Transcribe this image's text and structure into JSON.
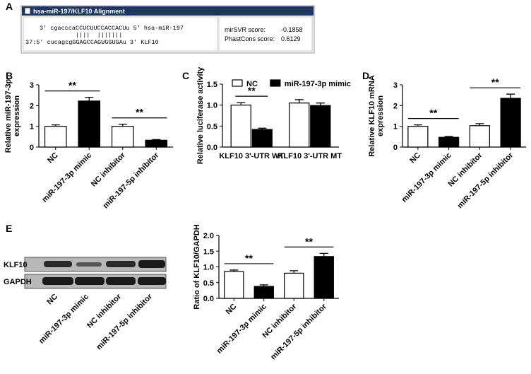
{
  "panel_labels": [
    "A",
    "B",
    "C",
    "D",
    "E"
  ],
  "alignment": {
    "title": "hsa-miR-197/KLF10 Alignment",
    "lines": [
      "3' cgacccaCCUCUUCCACCACUu 5' hsa-miR-197",
      "||||  |||||||",
      "37:5' cucagcgGGAGCCAGUGGUGAu 3' KLF10"
    ],
    "scores": [
      {
        "label": "mirSVR score:",
        "value": -0.1858
      },
      {
        "label": "PhastCons score:",
        "value": 0.6129
      }
    ]
  },
  "blot": {
    "rows": [
      "KLF10",
      "GAPDH"
    ],
    "lanes": [
      "NC",
      "miR-197-3p mimic",
      "NC inhibitor",
      "miR-197-5p inhibitor"
    ]
  },
  "chart_data": [
    {
      "type": "bar",
      "y_label": [
        "Relative miR-197-3p",
        "expression"
      ],
      "categories": [
        "NC",
        "miR-197-3p mimic",
        "NC inhibitor",
        "miR-197-5p inhibitor"
      ],
      "values": [
        1.0,
        2.22,
        1.0,
        0.33
      ],
      "errors": [
        0.07,
        0.18,
        0.1,
        0.03
      ],
      "colors": [
        "#ffffff",
        "#000000",
        "#ffffff",
        "#000000"
      ],
      "ylim": [
        0,
        3
      ],
      "yticks": [
        0,
        1,
        2,
        3
      ],
      "annotations": [
        "**",
        "**"
      ]
    },
    {
      "type": "grouped-bar",
      "y_label": [
        "Relative luciferase activity"
      ],
      "categories": [
        "KLF10 3'-UTR WT",
        "KLF10 3'-UTR MT"
      ],
      "series": [
        {
          "name": "NC",
          "color": "#ffffff",
          "values": [
            1.0,
            1.05
          ],
          "errors": [
            0.06,
            0.08
          ]
        },
        {
          "name": "miR-197-3p mimic",
          "color": "#000000",
          "values": [
            0.42,
            0.99
          ],
          "errors": [
            0.03,
            0.06
          ]
        }
      ],
      "ylim": [
        0,
        1.5
      ],
      "yticks": [
        {
          "value": 0,
          "label": "0.0"
        },
        0.5,
        {
          "value": 1,
          "label": "1.0"
        },
        1.5
      ],
      "annotations": [
        "**"
      ]
    },
    {
      "type": "bar",
      "y_label": [
        "Relative KLF10 mRNA",
        "expression"
      ],
      "categories": [
        "NC",
        "miR-197-3p mimic",
        "NC inhibitor",
        "miR-197-5p inhibitor"
      ],
      "values": [
        1.0,
        0.47,
        1.03,
        2.35
      ],
      "errors": [
        0.07,
        0.04,
        0.1,
        0.2
      ],
      "colors": [
        "#ffffff",
        "#000000",
        "#ffffff",
        "#000000"
      ],
      "ylim": [
        0,
        3
      ],
      "yticks": [
        0,
        1,
        2,
        3
      ],
      "annotations": [
        "**",
        "**"
      ]
    },
    {
      "type": "bar",
      "y_label": [
        "Ratio of KLF10/GAPDH"
      ],
      "categories": [
        "NC",
        "miR-197-3p mimic",
        "NC inhibitor",
        "miR-197-5p inhibitor"
      ],
      "values": [
        0.85,
        0.38,
        0.8,
        1.33
      ],
      "errors": [
        0.05,
        0.05,
        0.08,
        0.1
      ],
      "colors": [
        "#ffffff",
        "#000000",
        "#ffffff",
        "#000000"
      ],
      "ylim": [
        0,
        2
      ],
      "yticks": [
        {
          "value": 0,
          "label": "0.0"
        },
        0.5,
        {
          "value": 1,
          "label": "1.0"
        },
        1.5,
        {
          "value": 2,
          "label": "2.0"
        }
      ],
      "annotations": [
        "**",
        "**"
      ]
    }
  ]
}
